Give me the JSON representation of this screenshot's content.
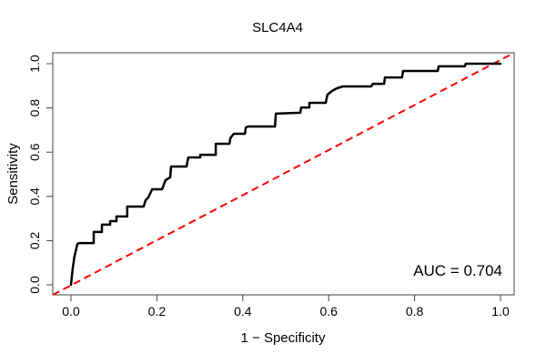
{
  "chart_data": {
    "type": "line",
    "title": "SLC4A4",
    "xlabel": "1 − Specificity",
    "ylabel": "Sensitivity",
    "xlim": [
      0.0,
      1.0
    ],
    "ylim": [
      0.0,
      1.0
    ],
    "x_ticks": [
      "0.0",
      "0.2",
      "0.4",
      "0.6",
      "0.8",
      "1.0"
    ],
    "y_ticks": [
      "0.0",
      "0.2",
      "0.4",
      "0.6",
      "0.8",
      "1.0"
    ],
    "grid": "off",
    "annotation": "AUC = 0.704",
    "auc_value": 0.704,
    "colors": {
      "roc_curve": "#000000",
      "chance_line": "#ff0000",
      "box": "#444444",
      "text": "#000000",
      "background": "#ffffff"
    },
    "chance_line": {
      "style": "dashed",
      "from": [
        0.0,
        0.0
      ],
      "to": [
        1.0,
        1.0
      ]
    },
    "series": [
      {
        "name": "ROC curve (SLC4A4)",
        "points": [
          [
            0.0,
            0.0
          ],
          [
            0.004,
            0.074
          ],
          [
            0.008,
            0.128
          ],
          [
            0.015,
            0.185
          ],
          [
            0.019,
            0.189
          ],
          [
            0.053,
            0.189
          ],
          [
            0.053,
            0.239
          ],
          [
            0.072,
            0.239
          ],
          [
            0.072,
            0.272
          ],
          [
            0.091,
            0.272
          ],
          [
            0.091,
            0.288
          ],
          [
            0.106,
            0.288
          ],
          [
            0.106,
            0.309
          ],
          [
            0.131,
            0.309
          ],
          [
            0.131,
            0.354
          ],
          [
            0.169,
            0.354
          ],
          [
            0.174,
            0.383
          ],
          [
            0.18,
            0.395
          ],
          [
            0.189,
            0.432
          ],
          [
            0.212,
            0.432
          ],
          [
            0.216,
            0.453
          ],
          [
            0.22,
            0.473
          ],
          [
            0.231,
            0.486
          ],
          [
            0.233,
            0.535
          ],
          [
            0.269,
            0.535
          ],
          [
            0.273,
            0.576
          ],
          [
            0.301,
            0.576
          ],
          [
            0.301,
            0.588
          ],
          [
            0.337,
            0.588
          ],
          [
            0.337,
            0.638
          ],
          [
            0.369,
            0.638
          ],
          [
            0.371,
            0.663
          ],
          [
            0.379,
            0.683
          ],
          [
            0.405,
            0.683
          ],
          [
            0.407,
            0.712
          ],
          [
            0.413,
            0.716
          ],
          [
            0.475,
            0.716
          ],
          [
            0.477,
            0.774
          ],
          [
            0.534,
            0.778
          ],
          [
            0.536,
            0.802
          ],
          [
            0.555,
            0.802
          ],
          [
            0.555,
            0.823
          ],
          [
            0.593,
            0.823
          ],
          [
            0.597,
            0.86
          ],
          [
            0.608,
            0.877
          ],
          [
            0.619,
            0.889
          ],
          [
            0.633,
            0.897
          ],
          [
            0.699,
            0.897
          ],
          [
            0.703,
            0.909
          ],
          [
            0.729,
            0.909
          ],
          [
            0.731,
            0.938
          ],
          [
            0.771,
            0.938
          ],
          [
            0.773,
            0.967
          ],
          [
            0.854,
            0.967
          ],
          [
            0.856,
            0.988
          ],
          [
            0.917,
            0.988
          ],
          [
            0.919,
            1.0
          ],
          [
            1.0,
            1.0
          ]
        ]
      }
    ]
  }
}
